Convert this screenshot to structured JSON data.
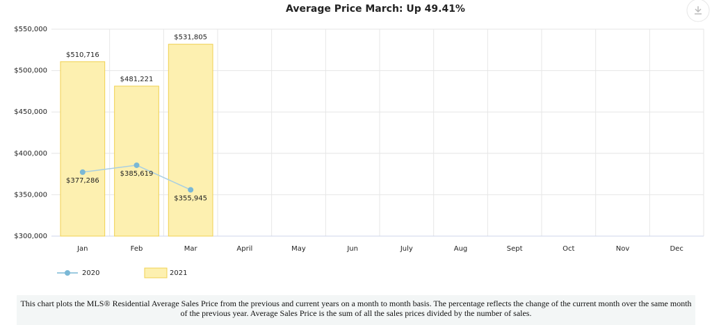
{
  "chart_data": {
    "type": "bar",
    "title": "Average Price March: Up 49.41%",
    "categories": [
      "Jan",
      "Feb",
      "Mar",
      "April",
      "May",
      "Jun",
      "July",
      "Aug",
      "Sept",
      "Oct",
      "Nov",
      "Dec"
    ],
    "series": [
      {
        "name": "2020",
        "type": "line",
        "color": "#7ab8d6",
        "values": [
          377286,
          385619,
          355945,
          null,
          null,
          null,
          null,
          null,
          null,
          null,
          null,
          null
        ],
        "value_labels": [
          "$377,286",
          "$385,619",
          "$355,945",
          null,
          null,
          null,
          null,
          null,
          null,
          null,
          null,
          null
        ]
      },
      {
        "name": "2021",
        "type": "bar",
        "color": "#fdf0b0",
        "values": [
          510716,
          481221,
          531805,
          null,
          null,
          null,
          null,
          null,
          null,
          null,
          null,
          null
        ],
        "value_labels": [
          "$510,716",
          "$481,221",
          "$531,805",
          null,
          null,
          null,
          null,
          null,
          null,
          null,
          null,
          null
        ]
      }
    ],
    "ylim": [
      300000,
      550000
    ],
    "yticks": [
      {
        "value": 300000,
        "label": "$300,000"
      },
      {
        "value": 350000,
        "label": "$350,000"
      },
      {
        "value": 400000,
        "label": "$400,000"
      },
      {
        "value": 450000,
        "label": "$450,000"
      },
      {
        "value": 500000,
        "label": "$500,000"
      },
      {
        "value": 550000,
        "label": "$550,000"
      }
    ],
    "grid": true
  },
  "caption": "This chart plots the MLS® Residential Average Sales Price from the previous and current years on a month to month basis. The percentage reflects the change of the current month over the same month of the previous year. Average Sales Price is the sum of all the sales prices divided by the number of sales."
}
